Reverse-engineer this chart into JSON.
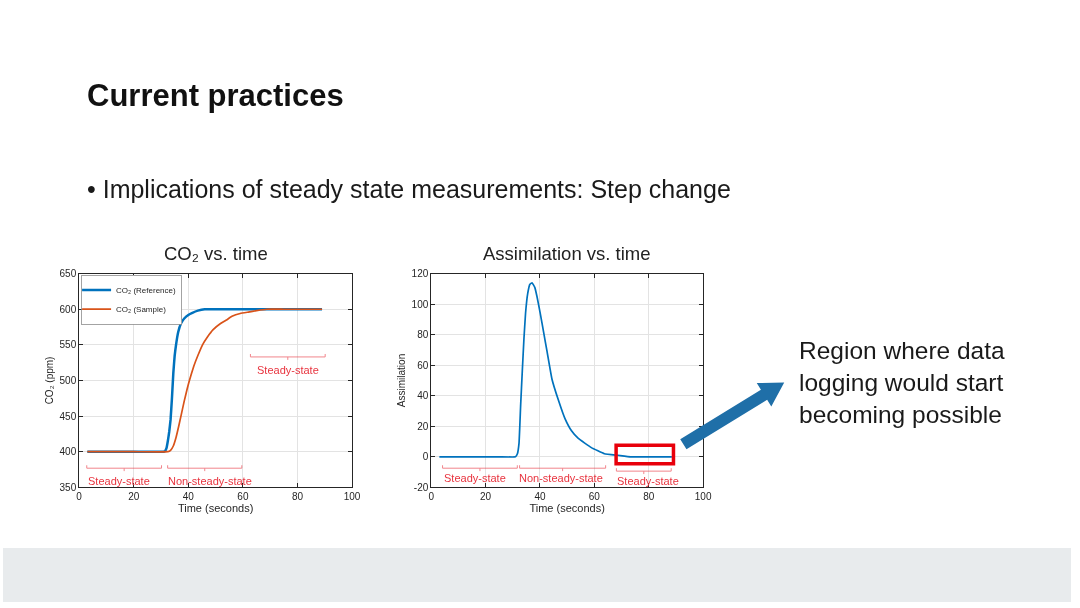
{
  "chart_data": [
    {
      "type": "other",
      "title": "Current practices",
      "subtitle": "• Implications of steady state measurements: Step change"
    },
    {
      "type": "line",
      "title": "CO₂ vs. time",
      "xlabel": "Time (seconds)",
      "ylabel": "CO₂ (ppm)",
      "xlim": [
        0,
        100
      ],
      "xticks": [
        0,
        20,
        40,
        60,
        80,
        100
      ],
      "ylim": [
        350,
        650
      ],
      "yticks": [
        350,
        400,
        450,
        500,
        550,
        600,
        650
      ],
      "grid": true,
      "legend": "top left",
      "series": [
        {
          "name": "CO₂ (Reference)",
          "color": "#0072bd",
          "x": [
            3,
            10,
            20,
            31,
            31.5,
            32,
            32.5,
            33,
            33.5,
            34,
            34.5,
            35,
            35.5,
            36.3,
            37.3,
            38.5,
            40,
            41.5,
            43.5,
            46,
            50,
            60,
            70,
            80,
            89
          ],
          "values": [
            400,
            400,
            400,
            400,
            401,
            405,
            415,
            428,
            445,
            475,
            510,
            535,
            550,
            568,
            580,
            587,
            592,
            595,
            598,
            600,
            600,
            600,
            600,
            600,
            600
          ]
        },
        {
          "name": "CO₂ (Sample)",
          "color": "#d95319",
          "x": [
            3,
            10,
            20,
            32.5,
            33.5,
            34.5,
            35.5,
            36.5,
            37.3,
            38.5,
            39.5,
            40.4,
            42,
            43.5,
            45.2,
            47,
            49,
            51.8,
            54,
            56,
            59,
            62,
            65,
            68.7,
            75,
            80,
            89
          ],
          "values": [
            400,
            400,
            400,
            400,
            402,
            408,
            420,
            436,
            450,
            471,
            487,
            500,
            520,
            535,
            550,
            561,
            571,
            580,
            585,
            590,
            594,
            596,
            598,
            600,
            600,
            600,
            600
          ]
        }
      ],
      "annotations": [
        "Steady-state",
        "Non-steady-state",
        "Steady-state"
      ]
    },
    {
      "type": "line",
      "title": "Assimilation vs. time",
      "xlabel": "Time (seconds)",
      "ylabel": "Assimilation",
      "xlim": [
        0,
        100
      ],
      "xticks": [
        0,
        20,
        40,
        60,
        80,
        100
      ],
      "ylim": [
        -20,
        120
      ],
      "yticks": [
        -20,
        0,
        20,
        40,
        60,
        80,
        100,
        120
      ],
      "grid": true,
      "series": [
        {
          "color": "#0072bd",
          "x": [
            3,
            6,
            10,
            15,
            20,
            25,
            31,
            31.7,
            32.3,
            32.9,
            33.5,
            34.1,
            34.7,
            35.5,
            36.3,
            37.1,
            38.1,
            38.9,
            40.1,
            41.4,
            42.6,
            44.4,
            46.8,
            49.2,
            51.6,
            54.1,
            58.9,
            63.7,
            68.6,
            73.4,
            78.2,
            83,
            88.5
          ],
          "values": [
            0,
            0,
            0,
            0,
            0,
            0,
            0,
            2,
            9,
            34,
            56,
            77,
            94,
            107,
            113,
            114,
            111,
            105,
            94,
            81,
            69,
            51,
            37,
            25,
            17,
            12,
            6,
            2,
            1,
            0,
            0,
            0,
            0
          ]
        }
      ],
      "annotations": [
        "Steady-state",
        "Non-steady-state",
        "Steady-state",
        "Region where data logging would start becoming possible"
      ]
    }
  ]
}
